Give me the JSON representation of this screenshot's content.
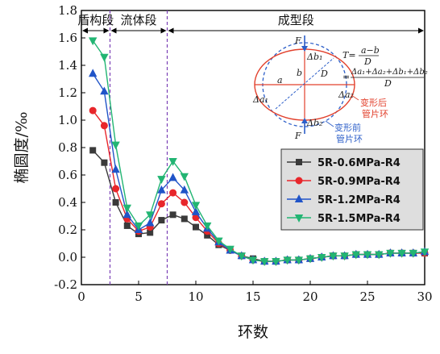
{
  "chart_data": {
    "type": "line",
    "title": "",
    "xlabel": "环数",
    "ylabel": "椭圆度/‰",
    "xlim": [
      0,
      30
    ],
    "ylim": [
      -0.2,
      1.8
    ],
    "xticks": [
      0,
      5,
      10,
      15,
      20,
      25,
      30
    ],
    "yticks": [
      -0.2,
      0.0,
      0.2,
      0.4,
      0.6,
      0.8,
      1.0,
      1.2,
      1.4,
      1.6,
      1.8
    ],
    "grid": false,
    "legend_position": "right-middle",
    "stage_lines": [
      2.5,
      7.5
    ],
    "stages": [
      {
        "label": "盾构段",
        "from": 0,
        "to": 2.5
      },
      {
        "label": "流体段",
        "from": 2.5,
        "to": 7.5
      },
      {
        "label": "成型段",
        "from": 7.5,
        "to": 30
      }
    ],
    "x": [
      1,
      2,
      3,
      4,
      5,
      6,
      7,
      8,
      9,
      10,
      11,
      12,
      13,
      14,
      15,
      16,
      17,
      18,
      19,
      20,
      21,
      22,
      23,
      24,
      25,
      26,
      27,
      28,
      29,
      30
    ],
    "series": [
      {
        "name": "5R-0.6MPa-R4",
        "color": "#3a3a3a",
        "marker": "square",
        "values": [
          0.78,
          0.69,
          0.4,
          0.23,
          0.17,
          0.18,
          0.27,
          0.31,
          0.28,
          0.22,
          0.16,
          0.09,
          0.05,
          0.01,
          -0.01,
          -0.03,
          -0.03,
          -0.02,
          -0.02,
          -0.01,
          0.0,
          0.01,
          0.01,
          0.02,
          0.02,
          0.02,
          0.03,
          0.03,
          0.03,
          0.03
        ]
      },
      {
        "name": "5R-0.9MPa-R4",
        "color": "#e8262b",
        "marker": "circle",
        "values": [
          1.07,
          0.96,
          0.5,
          0.28,
          0.19,
          0.22,
          0.39,
          0.47,
          0.4,
          0.29,
          0.19,
          0.1,
          0.05,
          0.01,
          -0.02,
          -0.03,
          -0.03,
          -0.02,
          -0.02,
          -0.01,
          0.0,
          0.01,
          0.01,
          0.02,
          0.02,
          0.02,
          0.03,
          0.03,
          0.03,
          0.03
        ]
      },
      {
        "name": "5R-1.2MPa-R4",
        "color": "#2054c8",
        "marker": "triangle-up",
        "values": [
          1.34,
          1.21,
          0.64,
          0.31,
          0.2,
          0.25,
          0.49,
          0.58,
          0.49,
          0.33,
          0.21,
          0.11,
          0.05,
          0.01,
          -0.02,
          -0.03,
          -0.03,
          -0.02,
          -0.02,
          -0.01,
          0.0,
          0.01,
          0.01,
          0.02,
          0.02,
          0.02,
          0.03,
          0.03,
          0.03,
          0.04
        ]
      },
      {
        "name": "5R-1.5MPa-R4",
        "color": "#22b573",
        "marker": "triangle-down",
        "values": [
          1.58,
          1.46,
          0.82,
          0.36,
          0.23,
          0.31,
          0.57,
          0.7,
          0.59,
          0.38,
          0.23,
          0.12,
          0.06,
          0.01,
          -0.02,
          -0.03,
          -0.03,
          -0.02,
          -0.02,
          -0.01,
          0.0,
          0.01,
          0.01,
          0.02,
          0.02,
          0.02,
          0.03,
          0.03,
          0.03,
          0.04
        ]
      }
    ]
  },
  "diagram": {
    "force_top": "F",
    "force_bottom": "F",
    "label_a": "a",
    "label_b": "b",
    "label_D": "D",
    "label_da1": "Δa₁",
    "label_da2": "Δa₂",
    "label_db1": "Δb₁",
    "label_db2": "Δb₂",
    "formula_1_lhs": "T=",
    "formula_1_num": "a−b",
    "formula_1_den": "D",
    "formula_2_eq": "=",
    "formula_2_num": "Δa₁+Δa₂+Δb₁+Δb₂",
    "formula_2_den": "D",
    "after_line1": "变形后",
    "after_line2": "管片环",
    "before_line1": "变形前",
    "before_line2": "管片环",
    "color_before": "#2d5fc9",
    "color_after": "#e2402c"
  }
}
